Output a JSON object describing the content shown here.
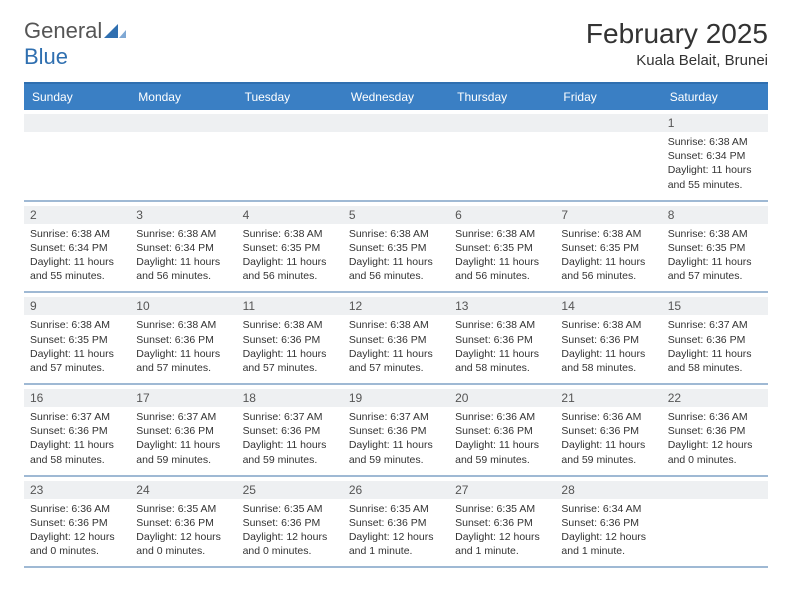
{
  "logo": {
    "general": "General",
    "blue": "Blue"
  },
  "title": "February 2025",
  "location": "Kuala Belait, Brunei",
  "colors": {
    "header_bg": "#3a7fc4",
    "header_text": "#ffffff",
    "border_top": "#2f6fb0",
    "week_divider": "#9fb9d4",
    "daynum_bg": "#eef0f2",
    "text": "#333333"
  },
  "day_headers": [
    "Sunday",
    "Monday",
    "Tuesday",
    "Wednesday",
    "Thursday",
    "Friday",
    "Saturday"
  ],
  "weeks": [
    [
      {
        "n": "",
        "sunrise": "",
        "sunset": "",
        "daylight": ""
      },
      {
        "n": "",
        "sunrise": "",
        "sunset": "",
        "daylight": ""
      },
      {
        "n": "",
        "sunrise": "",
        "sunset": "",
        "daylight": ""
      },
      {
        "n": "",
        "sunrise": "",
        "sunset": "",
        "daylight": ""
      },
      {
        "n": "",
        "sunrise": "",
        "sunset": "",
        "daylight": ""
      },
      {
        "n": "",
        "sunrise": "",
        "sunset": "",
        "daylight": ""
      },
      {
        "n": "1",
        "sunrise": "Sunrise: 6:38 AM",
        "sunset": "Sunset: 6:34 PM",
        "daylight": "Daylight: 11 hours and 55 minutes."
      }
    ],
    [
      {
        "n": "2",
        "sunrise": "Sunrise: 6:38 AM",
        "sunset": "Sunset: 6:34 PM",
        "daylight": "Daylight: 11 hours and 55 minutes."
      },
      {
        "n": "3",
        "sunrise": "Sunrise: 6:38 AM",
        "sunset": "Sunset: 6:34 PM",
        "daylight": "Daylight: 11 hours and 56 minutes."
      },
      {
        "n": "4",
        "sunrise": "Sunrise: 6:38 AM",
        "sunset": "Sunset: 6:35 PM",
        "daylight": "Daylight: 11 hours and 56 minutes."
      },
      {
        "n": "5",
        "sunrise": "Sunrise: 6:38 AM",
        "sunset": "Sunset: 6:35 PM",
        "daylight": "Daylight: 11 hours and 56 minutes."
      },
      {
        "n": "6",
        "sunrise": "Sunrise: 6:38 AM",
        "sunset": "Sunset: 6:35 PM",
        "daylight": "Daylight: 11 hours and 56 minutes."
      },
      {
        "n": "7",
        "sunrise": "Sunrise: 6:38 AM",
        "sunset": "Sunset: 6:35 PM",
        "daylight": "Daylight: 11 hours and 56 minutes."
      },
      {
        "n": "8",
        "sunrise": "Sunrise: 6:38 AM",
        "sunset": "Sunset: 6:35 PM",
        "daylight": "Daylight: 11 hours and 57 minutes."
      }
    ],
    [
      {
        "n": "9",
        "sunrise": "Sunrise: 6:38 AM",
        "sunset": "Sunset: 6:35 PM",
        "daylight": "Daylight: 11 hours and 57 minutes."
      },
      {
        "n": "10",
        "sunrise": "Sunrise: 6:38 AM",
        "sunset": "Sunset: 6:36 PM",
        "daylight": "Daylight: 11 hours and 57 minutes."
      },
      {
        "n": "11",
        "sunrise": "Sunrise: 6:38 AM",
        "sunset": "Sunset: 6:36 PM",
        "daylight": "Daylight: 11 hours and 57 minutes."
      },
      {
        "n": "12",
        "sunrise": "Sunrise: 6:38 AM",
        "sunset": "Sunset: 6:36 PM",
        "daylight": "Daylight: 11 hours and 57 minutes."
      },
      {
        "n": "13",
        "sunrise": "Sunrise: 6:38 AM",
        "sunset": "Sunset: 6:36 PM",
        "daylight": "Daylight: 11 hours and 58 minutes."
      },
      {
        "n": "14",
        "sunrise": "Sunrise: 6:38 AM",
        "sunset": "Sunset: 6:36 PM",
        "daylight": "Daylight: 11 hours and 58 minutes."
      },
      {
        "n": "15",
        "sunrise": "Sunrise: 6:37 AM",
        "sunset": "Sunset: 6:36 PM",
        "daylight": "Daylight: 11 hours and 58 minutes."
      }
    ],
    [
      {
        "n": "16",
        "sunrise": "Sunrise: 6:37 AM",
        "sunset": "Sunset: 6:36 PM",
        "daylight": "Daylight: 11 hours and 58 minutes."
      },
      {
        "n": "17",
        "sunrise": "Sunrise: 6:37 AM",
        "sunset": "Sunset: 6:36 PM",
        "daylight": "Daylight: 11 hours and 59 minutes."
      },
      {
        "n": "18",
        "sunrise": "Sunrise: 6:37 AM",
        "sunset": "Sunset: 6:36 PM",
        "daylight": "Daylight: 11 hours and 59 minutes."
      },
      {
        "n": "19",
        "sunrise": "Sunrise: 6:37 AM",
        "sunset": "Sunset: 6:36 PM",
        "daylight": "Daylight: 11 hours and 59 minutes."
      },
      {
        "n": "20",
        "sunrise": "Sunrise: 6:36 AM",
        "sunset": "Sunset: 6:36 PM",
        "daylight": "Daylight: 11 hours and 59 minutes."
      },
      {
        "n": "21",
        "sunrise": "Sunrise: 6:36 AM",
        "sunset": "Sunset: 6:36 PM",
        "daylight": "Daylight: 11 hours and 59 minutes."
      },
      {
        "n": "22",
        "sunrise": "Sunrise: 6:36 AM",
        "sunset": "Sunset: 6:36 PM",
        "daylight": "Daylight: 12 hours and 0 minutes."
      }
    ],
    [
      {
        "n": "23",
        "sunrise": "Sunrise: 6:36 AM",
        "sunset": "Sunset: 6:36 PM",
        "daylight": "Daylight: 12 hours and 0 minutes."
      },
      {
        "n": "24",
        "sunrise": "Sunrise: 6:35 AM",
        "sunset": "Sunset: 6:36 PM",
        "daylight": "Daylight: 12 hours and 0 minutes."
      },
      {
        "n": "25",
        "sunrise": "Sunrise: 6:35 AM",
        "sunset": "Sunset: 6:36 PM",
        "daylight": "Daylight: 12 hours and 0 minutes."
      },
      {
        "n": "26",
        "sunrise": "Sunrise: 6:35 AM",
        "sunset": "Sunset: 6:36 PM",
        "daylight": "Daylight: 12 hours and 1 minute."
      },
      {
        "n": "27",
        "sunrise": "Sunrise: 6:35 AM",
        "sunset": "Sunset: 6:36 PM",
        "daylight": "Daylight: 12 hours and 1 minute."
      },
      {
        "n": "28",
        "sunrise": "Sunrise: 6:34 AM",
        "sunset": "Sunset: 6:36 PM",
        "daylight": "Daylight: 12 hours and 1 minute."
      },
      {
        "n": "",
        "sunrise": "",
        "sunset": "",
        "daylight": ""
      }
    ]
  ]
}
